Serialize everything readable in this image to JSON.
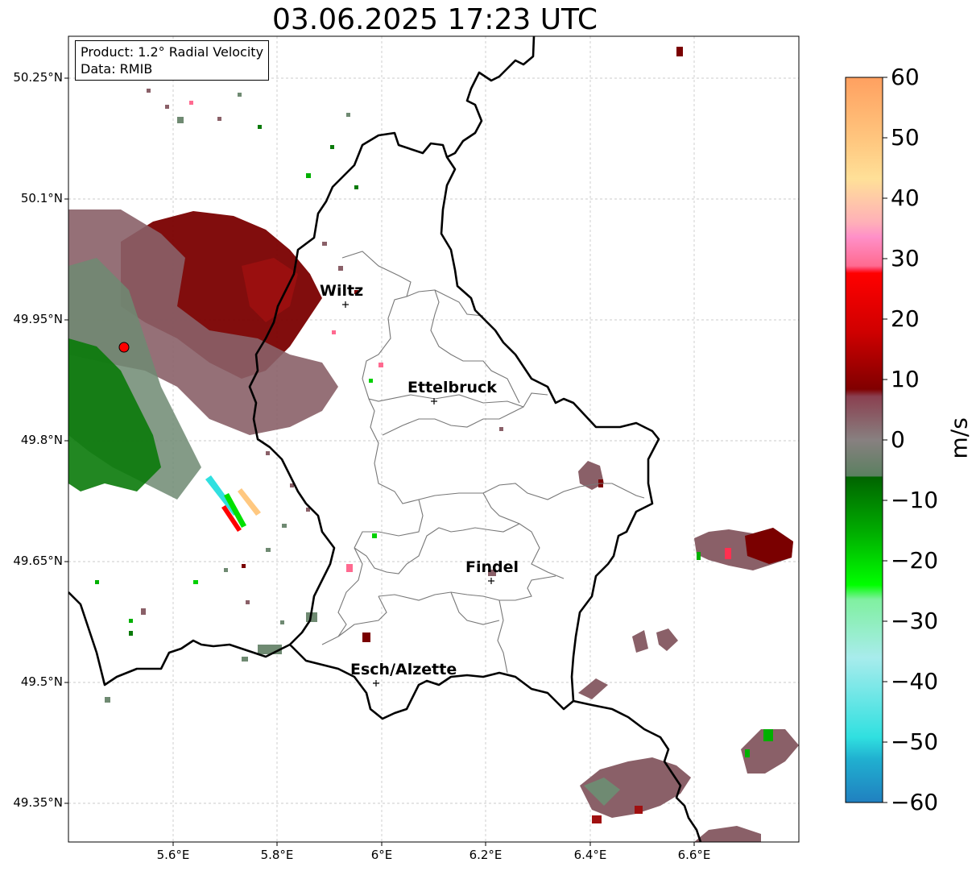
{
  "title": "03.06.2025 17:23 UTC",
  "info": {
    "product": "Product: 1.2° Radial Velocity",
    "data": "Data: RMIB"
  },
  "lat_labels": [
    "50.25°N",
    "50.1°N",
    "49.95°N",
    "49.8°N",
    "49.65°N",
    "49.5°N",
    "49.35°N"
  ],
  "lon_labels": [
    "5.6°E",
    "5.8°E",
    "6°E",
    "6.2°E",
    "6.4°E",
    "6.6°E"
  ],
  "cities": [
    "Wiltz",
    "Ettelbruck",
    "Findel",
    "Esch/Alzette"
  ],
  "colorbar": {
    "unit": "m/s",
    "ticks": [
      "60",
      "50",
      "40",
      "30",
      "20",
      "10",
      "0",
      "−10",
      "−20",
      "−30",
      "−40",
      "−50",
      "−60"
    ],
    "range": [
      -60,
      60
    ],
    "colors": {
      "pos_far": "#ffa060",
      "pos_high": "#ff8ac8",
      "pos_mid": "#ff0000",
      "pos_low": "#800000",
      "zero": "#808080",
      "neg_low": "#006400",
      "neg_mid": "#00e000",
      "neg_high": "#b0f0f0",
      "neg_far": "#2080c0"
    }
  },
  "map_extent": {
    "lon": [
      5.4,
      6.8
    ],
    "lat": [
      49.3,
      50.32
    ]
  },
  "radar_site": {
    "lon": 5.505,
    "lat": 49.914,
    "color": "#ff0000"
  }
}
